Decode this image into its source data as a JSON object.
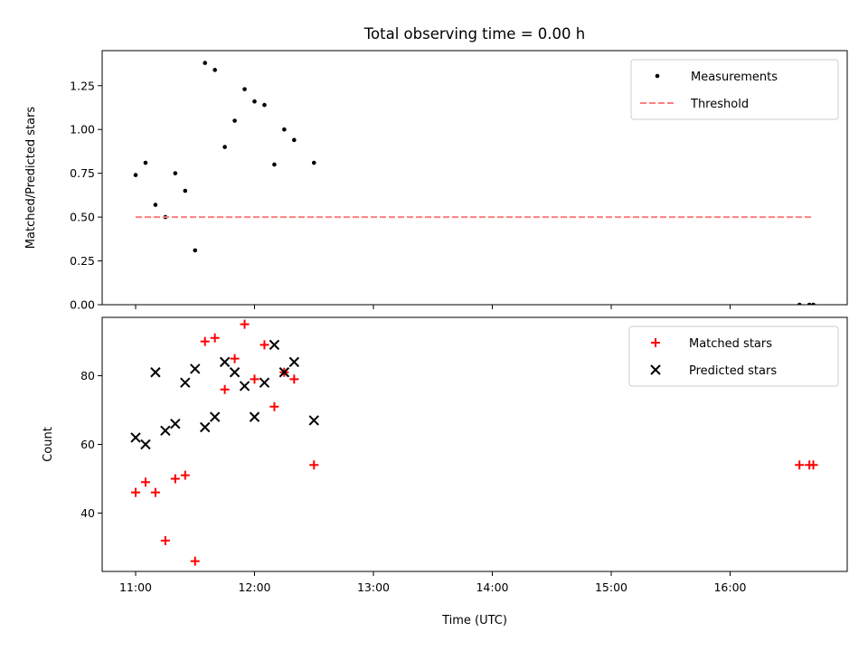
{
  "chart_data": [
    {
      "type": "scatter",
      "title": "Total observing time = 0.00 h",
      "xlabel": "",
      "ylabel": "Matched/Predicted stars",
      "xlim": [
        "10:43",
        "17:00"
      ],
      "ylim": [
        0,
        1.45
      ],
      "x_ticks": [
        "11:00",
        "12:00",
        "13:00",
        "14:00",
        "15:00",
        "16:00"
      ],
      "x_tick_labels_shown": false,
      "y_ticks": [
        "0.00",
        "0.25",
        "0.50",
        "0.75",
        "1.00",
        "1.25"
      ],
      "grid": false,
      "legend": "upper right",
      "series": [
        {
          "name": "Measurements",
          "kind": "scatter",
          "marker": "dot",
          "color": "#000000",
          "points": [
            [
              "11:00",
              0.74
            ],
            [
              "11:05",
              0.81
            ],
            [
              "11:10",
              0.57
            ],
            [
              "11:15",
              0.5
            ],
            [
              "11:20",
              0.75
            ],
            [
              "11:25",
              0.65
            ],
            [
              "11:30",
              0.31
            ],
            [
              "11:35",
              1.38
            ],
            [
              "11:40",
              1.34
            ],
            [
              "11:45",
              0.9
            ],
            [
              "11:50",
              1.05
            ],
            [
              "11:55",
              1.23
            ],
            [
              "12:00",
              1.16
            ],
            [
              "12:05",
              1.14
            ],
            [
              "12:10",
              0.8
            ],
            [
              "12:15",
              1.0
            ],
            [
              "12:20",
              0.94
            ],
            [
              "12:30",
              0.81
            ],
            [
              "16:35",
              0.0
            ],
            [
              "16:40",
              0.0
            ],
            [
              "16:42",
              0.0
            ]
          ]
        },
        {
          "name": "Threshold",
          "kind": "line",
          "style": "dashed",
          "color": "#ff7f7f",
          "points": [
            [
              "11:00",
              0.5
            ],
            [
              "16:42",
              0.5
            ]
          ]
        }
      ]
    },
    {
      "type": "scatter",
      "title": "",
      "xlabel": "Time (UTC)",
      "ylabel": "Count",
      "xlim": [
        "10:43",
        "17:00"
      ],
      "ylim": [
        23,
        97
      ],
      "x_ticks": [
        "11:00",
        "12:00",
        "13:00",
        "14:00",
        "15:00",
        "16:00"
      ],
      "y_ticks": [
        "40",
        "60",
        "80"
      ],
      "grid": false,
      "legend": "upper right",
      "series": [
        {
          "name": "Matched stars",
          "marker": "plus",
          "color": "#ff0000",
          "points": [
            [
              "11:00",
              46
            ],
            [
              "11:05",
              49
            ],
            [
              "11:10",
              46
            ],
            [
              "11:15",
              32
            ],
            [
              "11:20",
              50
            ],
            [
              "11:25",
              51
            ],
            [
              "11:30",
              26
            ],
            [
              "11:35",
              90
            ],
            [
              "11:40",
              91
            ],
            [
              "11:45",
              76
            ],
            [
              "11:50",
              85
            ],
            [
              "11:55",
              95
            ],
            [
              "12:00",
              79
            ],
            [
              "12:05",
              89
            ],
            [
              "12:10",
              71
            ],
            [
              "12:15",
              81
            ],
            [
              "12:20",
              79
            ],
            [
              "12:30",
              54
            ],
            [
              "16:35",
              54
            ],
            [
              "16:40",
              54
            ],
            [
              "16:42",
              54
            ]
          ]
        },
        {
          "name": "Predicted stars",
          "marker": "x",
          "color": "#000000",
          "points": [
            [
              "11:00",
              62
            ],
            [
              "11:05",
              60
            ],
            [
              "11:10",
              81
            ],
            [
              "11:15",
              64
            ],
            [
              "11:20",
              66
            ],
            [
              "11:25",
              78
            ],
            [
              "11:30",
              82
            ],
            [
              "11:35",
              65
            ],
            [
              "11:40",
              68
            ],
            [
              "11:45",
              84
            ],
            [
              "11:50",
              81
            ],
            [
              "11:55",
              77
            ],
            [
              "12:00",
              68
            ],
            [
              "12:05",
              78
            ],
            [
              "12:10",
              89
            ],
            [
              "12:15",
              81
            ],
            [
              "12:20",
              84
            ],
            [
              "12:30",
              67
            ]
          ]
        }
      ]
    }
  ]
}
